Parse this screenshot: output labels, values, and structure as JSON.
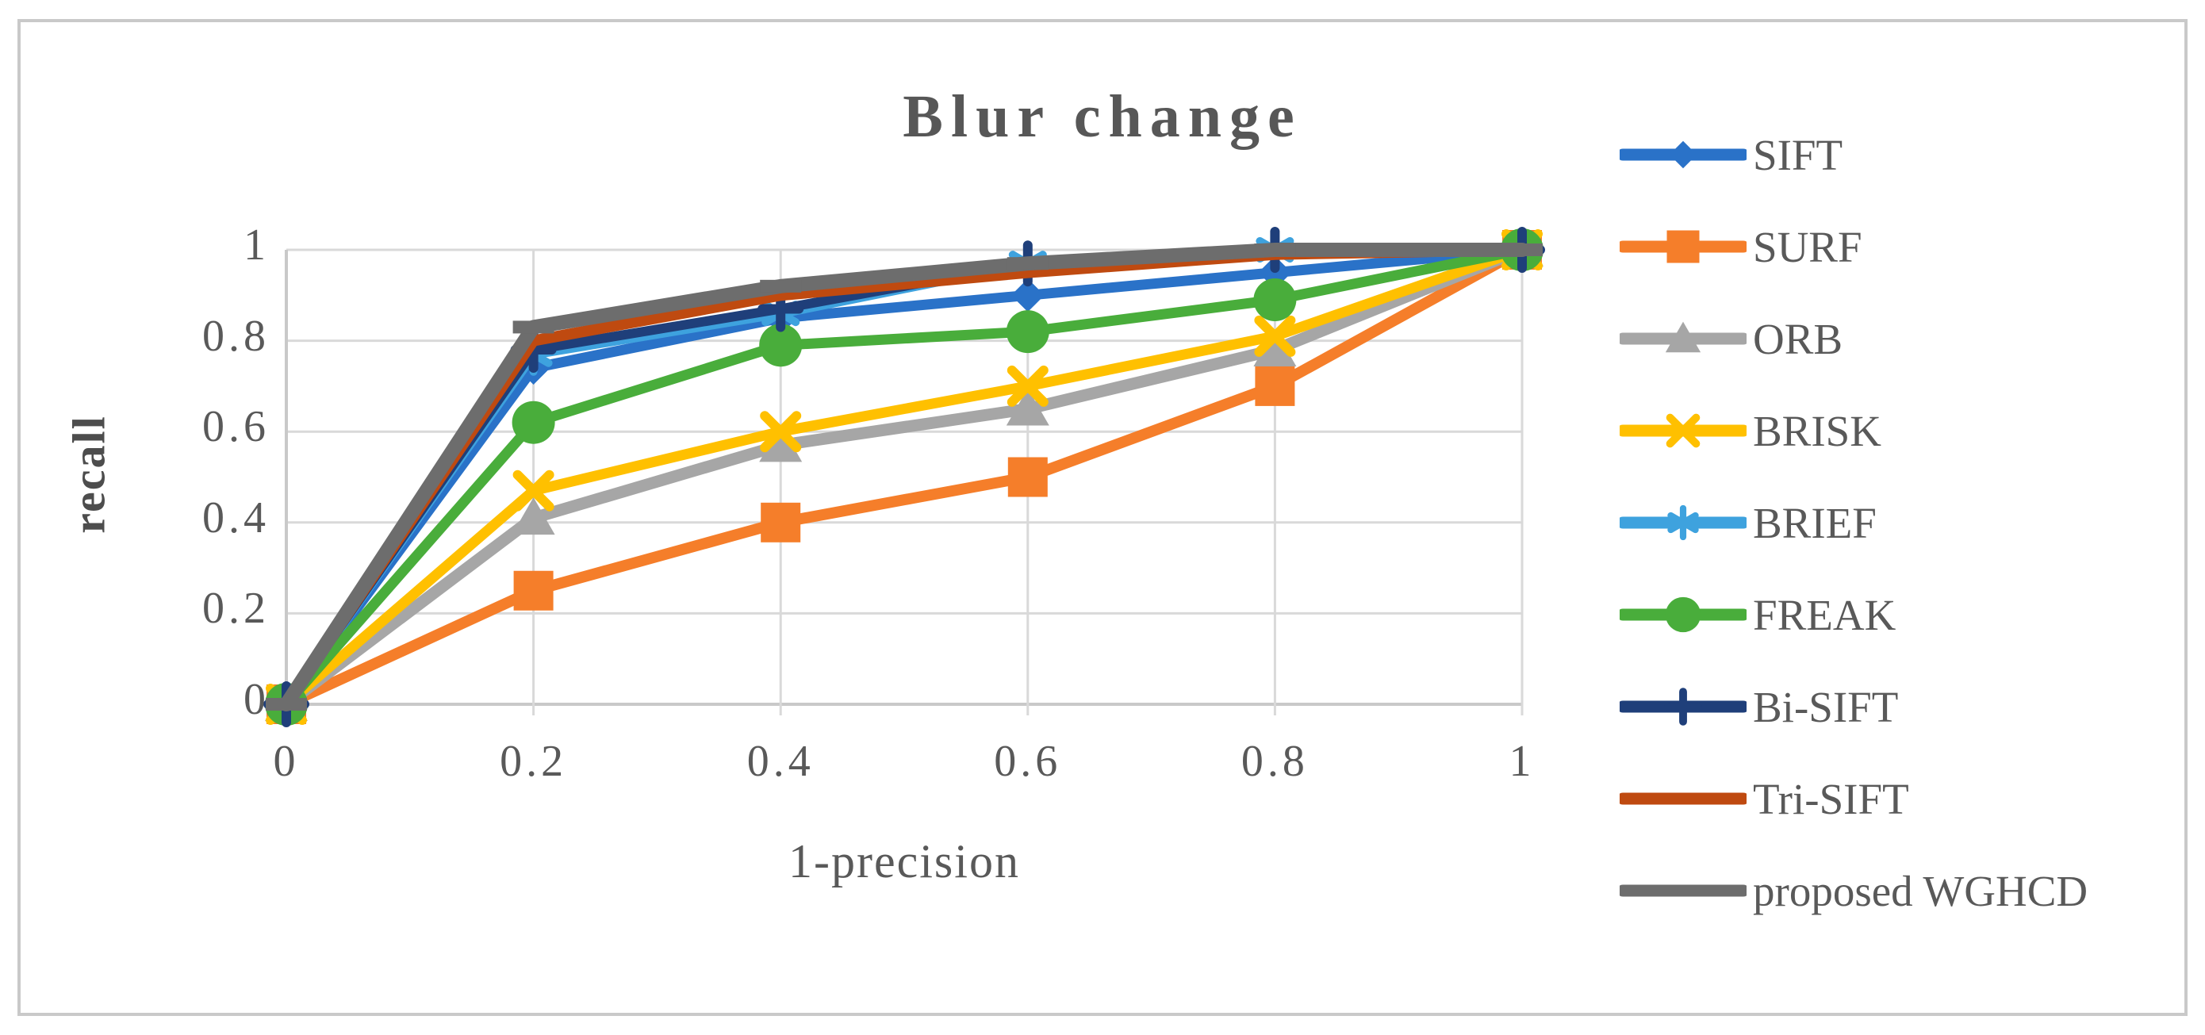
{
  "title": "Blur change",
  "axes": {
    "x_title": "1-precision",
    "y_title": "recall",
    "x_ticks": [
      {
        "label": "0",
        "value": 0
      },
      {
        "label": "0.2",
        "value": 0.2
      },
      {
        "label": "0.4",
        "value": 0.4
      },
      {
        "label": "0.6",
        "value": 0.6
      },
      {
        "label": "0.8",
        "value": 0.8
      },
      {
        "label": "1",
        "value": 1
      }
    ],
    "y_ticks": [
      {
        "label": "0",
        "value": 0
      },
      {
        "label": "0.2",
        "value": 0.2
      },
      {
        "label": "0.4",
        "value": 0.4
      },
      {
        "label": "0.6",
        "value": 0.6
      },
      {
        "label": "0.8",
        "value": 0.8
      },
      {
        "label": "1",
        "value": 1
      }
    ]
  },
  "colors": {
    "grid": "#d9d9d9",
    "axis_line": "#c9c9c9",
    "text": "#595959",
    "border": "#c9c9c9"
  },
  "chart_data": {
    "type": "line",
    "title": "Blur change",
    "xlabel": "1-precision",
    "ylabel": "recall",
    "xlim": [
      0,
      1
    ],
    "ylim": [
      0,
      1
    ],
    "grid": true,
    "legend_position": "right",
    "x": [
      0,
      0.2,
      0.4,
      0.6,
      0.8,
      1
    ],
    "series": [
      {
        "name": "SIFT",
        "color": "#2a72c8",
        "marker": "diamond",
        "values": [
          0,
          0.74,
          0.85,
          0.9,
          0.95,
          1
        ]
      },
      {
        "name": "SURF",
        "color": "#f57e2a",
        "marker": "square",
        "values": [
          0,
          0.25,
          0.4,
          0.5,
          0.7,
          1
        ]
      },
      {
        "name": "ORB",
        "color": "#a6a6a6",
        "marker": "triangle",
        "values": [
          0,
          0.41,
          0.57,
          0.65,
          0.78,
          1
        ]
      },
      {
        "name": "BRISK",
        "color": "#ffc000",
        "marker": "x",
        "values": [
          0,
          0.47,
          0.6,
          0.7,
          0.81,
          1
        ]
      },
      {
        "name": "BRIEF",
        "color": "#3ea2de",
        "marker": "asterisk",
        "values": [
          0,
          0.77,
          0.86,
          0.97,
          1.0,
          1
        ]
      },
      {
        "name": "FREAK",
        "color": "#49ad3b",
        "marker": "circle",
        "values": [
          0,
          0.62,
          0.79,
          0.82,
          0.89,
          1
        ]
      },
      {
        "name": "Bi-SIFT",
        "color": "#1f3f7a",
        "marker": "plus",
        "values": [
          0,
          0.78,
          0.87,
          0.97,
          1.0,
          1
        ]
      },
      {
        "name": "Tri-SIFT",
        "color": "#bf4a10",
        "marker": "none",
        "values": [
          0,
          0.8,
          0.9,
          0.95,
          0.99,
          1
        ]
      },
      {
        "name": "proposed WGHCD",
        "color": "#6d6d6d",
        "marker": "dash",
        "values": [
          0,
          0.83,
          0.92,
          0.97,
          1.0,
          1
        ]
      }
    ]
  }
}
